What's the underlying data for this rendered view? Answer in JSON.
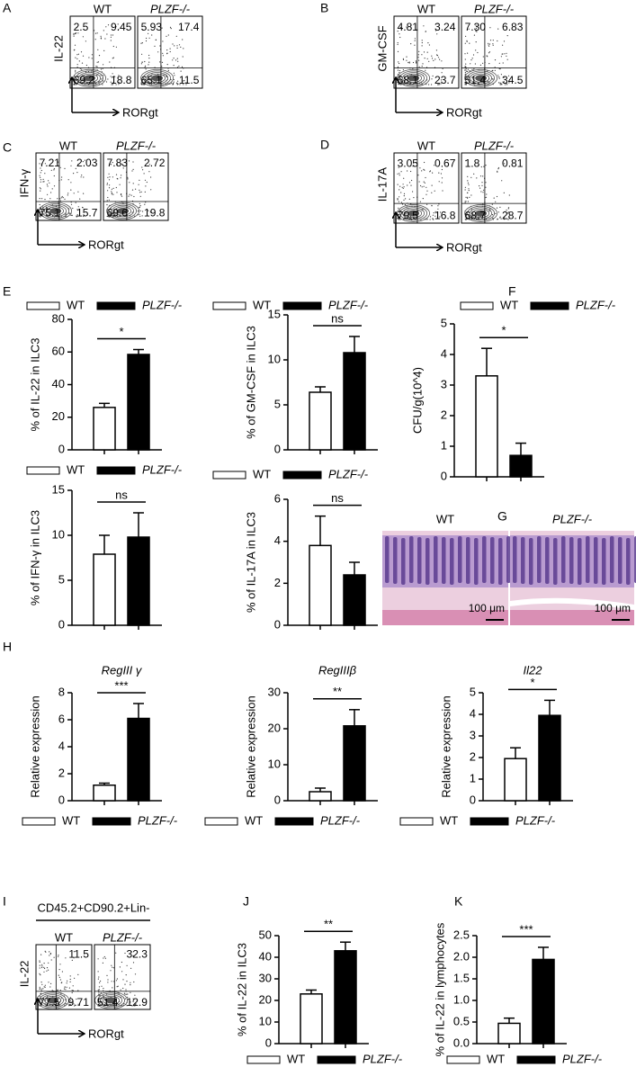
{
  "flow_panels": [
    {
      "label": "A",
      "y_label": "IL-22",
      "x_label": "RORgt",
      "plots": [
        {
          "title": "WT",
          "upper_left": "2.5",
          "upper_right": "9.45",
          "lower_left": "69.2",
          "lower_right": "18.8"
        },
        {
          "title": "PLZF-/-",
          "upper_left": "5.93",
          "upper_right": "17.4",
          "lower_left": "65.1",
          "lower_right": "11.5"
        }
      ]
    },
    {
      "label": "B",
      "y_label": "GM-CSF",
      "x_label": "RORgt",
      "plots": [
        {
          "title": "WT",
          "upper_left": "4.81",
          "upper_right": "3.24",
          "lower_left": "68.1",
          "lower_right": "23.7"
        },
        {
          "title": "PLZF-/-",
          "upper_left": "7.30",
          "upper_right": "6.83",
          "lower_left": "51.4",
          "lower_right": "34.5"
        }
      ]
    },
    {
      "label": "C",
      "y_label": "IFN-γ",
      "x_label": "RORgt",
      "plots": [
        {
          "title": "WT",
          "upper_left": "7.21",
          "upper_right": "2.03",
          "lower_left": "75.1",
          "lower_right": "15.7"
        },
        {
          "title": "PLZF-/-",
          "upper_left": "7.83",
          "upper_right": "2.72",
          "lower_left": "69.6",
          "lower_right": "19.8"
        }
      ]
    },
    {
      "label": "D",
      "y_label": "IL-17A",
      "x_label": "RORgt",
      "plots": [
        {
          "title": "WT",
          "upper_left": "3.05",
          "upper_right": "0.67",
          "lower_left": "79.5",
          "lower_right": "16.8"
        },
        {
          "title": "PLZF-/-",
          "upper_left": "1.8",
          "upper_right": "0.81",
          "lower_left": "68.7",
          "lower_right": "28.7"
        }
      ]
    },
    {
      "label": "I",
      "header": "CD45.2+CD90.2+Lin-",
      "y_label": "IL-22",
      "x_label": "RORgt",
      "plots": [
        {
          "title": "WT",
          "upper_right": "11.5",
          "lower_left": "77.5",
          "lower_right": "9.71"
        },
        {
          "title": "PLZF-/-",
          "upper_right": "32.3",
          "lower_left": "51.4",
          "lower_right": "12.9"
        }
      ]
    }
  ],
  "histology": {
    "label": "G",
    "images": [
      {
        "title": "WT",
        "scale_bar": "100 μm"
      },
      {
        "title": "PLZF-/-",
        "scale_bar": "100 μm"
      }
    ]
  },
  "chart_data": [
    {
      "type": "bar",
      "panel": "E",
      "y_label": "% of IL-22 in ILC3",
      "ylim": [
        0,
        80
      ],
      "yticks": [
        0,
        20,
        40,
        60,
        80
      ],
      "significance": "*",
      "series": [
        {
          "name": "WT",
          "color": "#ffffff",
          "values": [
            26
          ],
          "errors": [
            2.5
          ]
        },
        {
          "name": "PLZF-/-",
          "color": "#000000",
          "values": [
            58.5
          ],
          "errors": [
            3
          ]
        }
      ]
    },
    {
      "type": "bar",
      "y_label": "% of GM-CSF in ILC3",
      "ylim": [
        0,
        15
      ],
      "yticks": [
        0,
        5,
        10,
        15
      ],
      "significance": "ns",
      "series": [
        {
          "name": "WT",
          "color": "#ffffff",
          "values": [
            6.4
          ],
          "errors": [
            0.6
          ]
        },
        {
          "name": "PLZF-/-",
          "color": "#000000",
          "values": [
            10.8
          ],
          "errors": [
            1.8
          ]
        }
      ]
    },
    {
      "type": "bar",
      "y_label": "% of IFN-γ in ILC3",
      "ylim": [
        0,
        15
      ],
      "yticks": [
        0,
        5,
        10,
        15
      ],
      "significance": "ns",
      "series": [
        {
          "name": "WT",
          "color": "#ffffff",
          "values": [
            7.9
          ],
          "errors": [
            2.1
          ]
        },
        {
          "name": "PLZF-/-",
          "color": "#000000",
          "values": [
            9.8
          ],
          "errors": [
            2.7
          ]
        }
      ]
    },
    {
      "type": "bar",
      "y_label": "% of IL-17A in ILC3",
      "ylim": [
        0,
        6
      ],
      "yticks": [
        0,
        2,
        4,
        6
      ],
      "significance": "ns",
      "series": [
        {
          "name": "WT",
          "color": "#ffffff",
          "values": [
            3.8
          ],
          "errors": [
            1.4
          ]
        },
        {
          "name": "PLZF-/-",
          "color": "#000000",
          "values": [
            2.4
          ],
          "errors": [
            0.6
          ]
        }
      ]
    },
    {
      "type": "bar",
      "panel": "F",
      "y_label": "CFU/g(10^4)",
      "ylim": [
        0,
        5
      ],
      "yticks": [
        0,
        1,
        2,
        3,
        4,
        5
      ],
      "significance": "*",
      "series": [
        {
          "name": "WT",
          "color": "#ffffff",
          "values": [
            3.3
          ],
          "errors": [
            0.9
          ]
        },
        {
          "name": "PLZF-/-",
          "color": "#000000",
          "values": [
            0.7
          ],
          "errors": [
            0.4
          ]
        }
      ]
    },
    {
      "type": "bar",
      "panel": "H",
      "title": "RegIII γ",
      "y_label": "Relative expression",
      "ylim": [
        0,
        8
      ],
      "yticks": [
        0,
        2,
        4,
        6,
        8
      ],
      "significance": "***",
      "series": [
        {
          "name": "WT",
          "color": "#ffffff",
          "values": [
            1.15
          ],
          "errors": [
            0.15
          ]
        },
        {
          "name": "PLZF-/-",
          "color": "#000000",
          "values": [
            6.1
          ],
          "errors": [
            1.1
          ]
        }
      ]
    },
    {
      "type": "bar",
      "title": "RegIIIβ",
      "y_label": "Relative expression",
      "ylim": [
        0,
        30
      ],
      "yticks": [
        0,
        10,
        20,
        30
      ],
      "significance": "**",
      "series": [
        {
          "name": "WT",
          "color": "#ffffff",
          "values": [
            2.5
          ],
          "errors": [
            1
          ]
        },
        {
          "name": "PLZF-/-",
          "color": "#000000",
          "values": [
            20.8
          ],
          "errors": [
            4.5
          ]
        }
      ]
    },
    {
      "type": "bar",
      "title": "Il22",
      "y_label": "Relative expression",
      "ylim": [
        0,
        5
      ],
      "yticks": [
        0,
        1,
        2,
        3,
        4,
        5
      ],
      "significance": "*",
      "series": [
        {
          "name": "WT",
          "color": "#ffffff",
          "values": [
            1.95
          ],
          "errors": [
            0.5
          ]
        },
        {
          "name": "PLZF-/-",
          "color": "#000000",
          "values": [
            3.95
          ],
          "errors": [
            0.7
          ]
        }
      ]
    },
    {
      "type": "bar",
      "panel": "J",
      "y_label": "% of IL-22 in ILC3",
      "ylim": [
        0,
        50
      ],
      "yticks": [
        0,
        10,
        20,
        30,
        40,
        50
      ],
      "significance": "**",
      "series": [
        {
          "name": "WT",
          "color": "#ffffff",
          "values": [
            23
          ],
          "errors": [
            1.8
          ]
        },
        {
          "name": "PLZF-/-",
          "color": "#000000",
          "values": [
            43
          ],
          "errors": [
            4
          ]
        }
      ]
    },
    {
      "type": "bar",
      "panel": "K",
      "y_label": "% of IL-22 in lymphocytes",
      "ylim": [
        0,
        2.5
      ],
      "yticks": [
        {
          "value": 0,
          "label": "0.0"
        },
        0.5,
        {
          "value": 1,
          "label": "1.0"
        },
        1.5,
        {
          "value": 2,
          "label": "2.0"
        },
        2.5
      ],
      "significance": "***",
      "series": [
        {
          "name": "WT",
          "color": "#ffffff",
          "values": [
            0.47
          ],
          "errors": [
            0.12
          ]
        },
        {
          "name": "PLZF-/-",
          "color": "#000000",
          "values": [
            1.95
          ],
          "errors": [
            0.28
          ]
        }
      ]
    }
  ]
}
